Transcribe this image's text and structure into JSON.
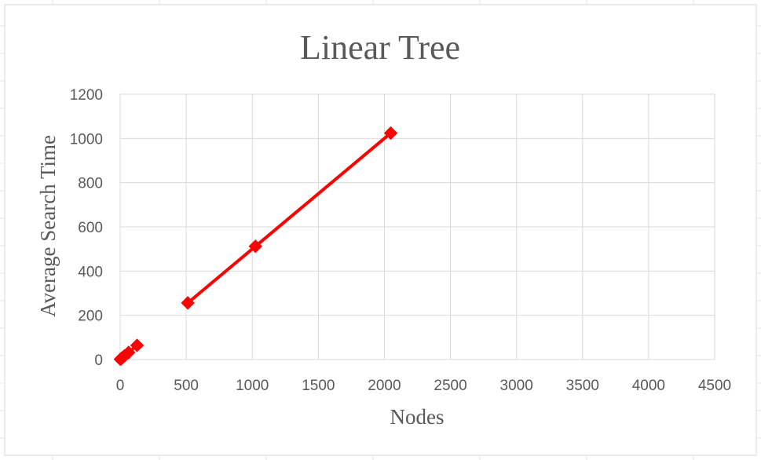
{
  "chart_data": {
    "type": "line",
    "title": "Linear Tree",
    "xlabel": "Nodes",
    "ylabel": "Average Search Time",
    "xlim": [
      0,
      4500
    ],
    "ylim": [
      0,
      1200
    ],
    "x_ticks": [
      0,
      500,
      1000,
      1500,
      2000,
      2500,
      3000,
      3500,
      4000,
      4500
    ],
    "y_ticks": [
      0,
      200,
      400,
      600,
      800,
      1000,
      1200
    ],
    "grid": true,
    "series": [
      {
        "color": "#ff0000",
        "marker": "diamond",
        "segments": [
          [
            {
              "x": 2,
              "y": 1
            },
            {
              "x": 4,
              "y": 2
            },
            {
              "x": 8,
              "y": 4
            },
            {
              "x": 16,
              "y": 8
            },
            {
              "x": 32,
              "y": 16
            },
            {
              "x": 64,
              "y": 32
            },
            {
              "x": 128,
              "y": 64
            }
          ],
          [
            {
              "x": 512,
              "y": 256
            },
            {
              "x": 1024,
              "y": 512
            },
            {
              "x": 2048,
              "y": 1024
            }
          ]
        ]
      }
    ]
  }
}
